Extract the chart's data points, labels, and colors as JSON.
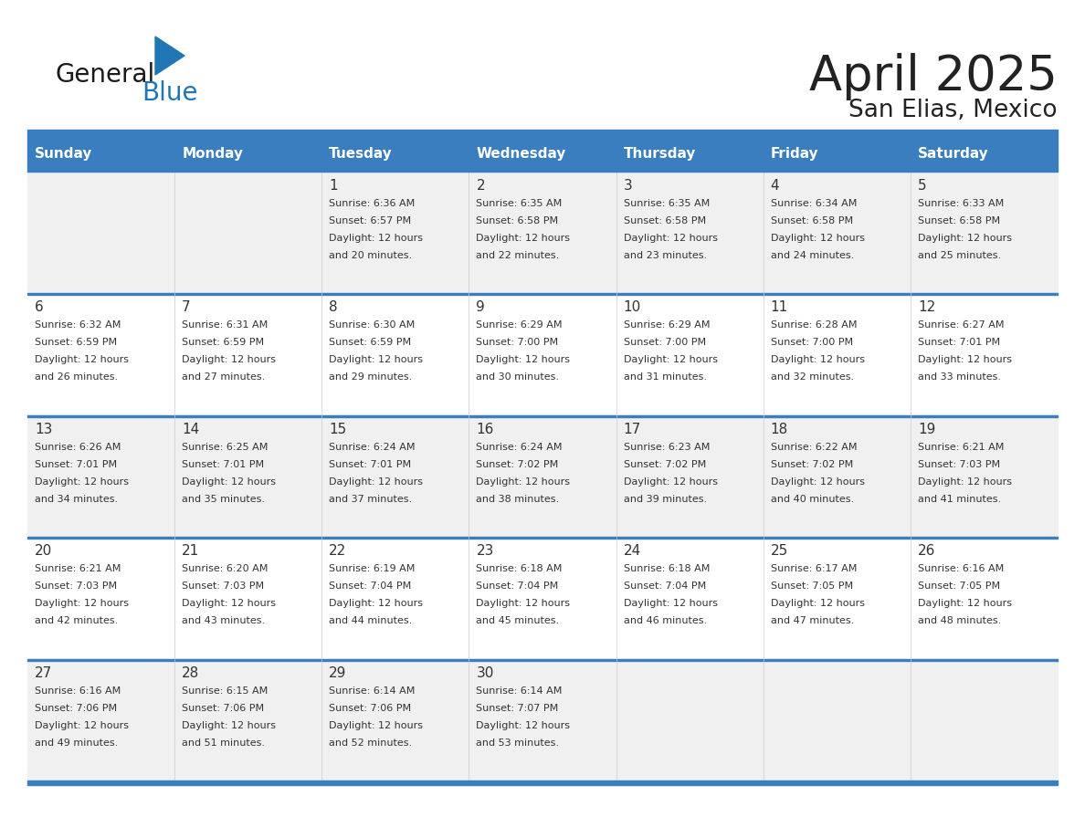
{
  "title": "April 2025",
  "subtitle": "San Elias, Mexico",
  "header_color": "#3a7ebf",
  "header_text_color": "#ffffff",
  "day_names": [
    "Sunday",
    "Monday",
    "Tuesday",
    "Wednesday",
    "Thursday",
    "Friday",
    "Saturday"
  ],
  "row_bg_odd": "#f0f0f0",
  "row_bg_even": "#ffffff",
  "cell_border_color": "#3a7ebf",
  "text_color": "#333333",
  "title_color": "#222222",
  "days": [
    {
      "day": 1,
      "col": 2,
      "row": 0,
      "sunrise": "6:36 AM",
      "sunset": "6:57 PM",
      "daylight_hours": 12,
      "daylight_minutes": 20
    },
    {
      "day": 2,
      "col": 3,
      "row": 0,
      "sunrise": "6:35 AM",
      "sunset": "6:58 PM",
      "daylight_hours": 12,
      "daylight_minutes": 22
    },
    {
      "day": 3,
      "col": 4,
      "row": 0,
      "sunrise": "6:35 AM",
      "sunset": "6:58 PM",
      "daylight_hours": 12,
      "daylight_minutes": 23
    },
    {
      "day": 4,
      "col": 5,
      "row": 0,
      "sunrise": "6:34 AM",
      "sunset": "6:58 PM",
      "daylight_hours": 12,
      "daylight_minutes": 24
    },
    {
      "day": 5,
      "col": 6,
      "row": 0,
      "sunrise": "6:33 AM",
      "sunset": "6:58 PM",
      "daylight_hours": 12,
      "daylight_minutes": 25
    },
    {
      "day": 6,
      "col": 0,
      "row": 1,
      "sunrise": "6:32 AM",
      "sunset": "6:59 PM",
      "daylight_hours": 12,
      "daylight_minutes": 26
    },
    {
      "day": 7,
      "col": 1,
      "row": 1,
      "sunrise": "6:31 AM",
      "sunset": "6:59 PM",
      "daylight_hours": 12,
      "daylight_minutes": 27
    },
    {
      "day": 8,
      "col": 2,
      "row": 1,
      "sunrise": "6:30 AM",
      "sunset": "6:59 PM",
      "daylight_hours": 12,
      "daylight_minutes": 29
    },
    {
      "day": 9,
      "col": 3,
      "row": 1,
      "sunrise": "6:29 AM",
      "sunset": "7:00 PM",
      "daylight_hours": 12,
      "daylight_minutes": 30
    },
    {
      "day": 10,
      "col": 4,
      "row": 1,
      "sunrise": "6:29 AM",
      "sunset": "7:00 PM",
      "daylight_hours": 12,
      "daylight_minutes": 31
    },
    {
      "day": 11,
      "col": 5,
      "row": 1,
      "sunrise": "6:28 AM",
      "sunset": "7:00 PM",
      "daylight_hours": 12,
      "daylight_minutes": 32
    },
    {
      "day": 12,
      "col": 6,
      "row": 1,
      "sunrise": "6:27 AM",
      "sunset": "7:01 PM",
      "daylight_hours": 12,
      "daylight_minutes": 33
    },
    {
      "day": 13,
      "col": 0,
      "row": 2,
      "sunrise": "6:26 AM",
      "sunset": "7:01 PM",
      "daylight_hours": 12,
      "daylight_minutes": 34
    },
    {
      "day": 14,
      "col": 1,
      "row": 2,
      "sunrise": "6:25 AM",
      "sunset": "7:01 PM",
      "daylight_hours": 12,
      "daylight_minutes": 35
    },
    {
      "day": 15,
      "col": 2,
      "row": 2,
      "sunrise": "6:24 AM",
      "sunset": "7:01 PM",
      "daylight_hours": 12,
      "daylight_minutes": 37
    },
    {
      "day": 16,
      "col": 3,
      "row": 2,
      "sunrise": "6:24 AM",
      "sunset": "7:02 PM",
      "daylight_hours": 12,
      "daylight_minutes": 38
    },
    {
      "day": 17,
      "col": 4,
      "row": 2,
      "sunrise": "6:23 AM",
      "sunset": "7:02 PM",
      "daylight_hours": 12,
      "daylight_minutes": 39
    },
    {
      "day": 18,
      "col": 5,
      "row": 2,
      "sunrise": "6:22 AM",
      "sunset": "7:02 PM",
      "daylight_hours": 12,
      "daylight_minutes": 40
    },
    {
      "day": 19,
      "col": 6,
      "row": 2,
      "sunrise": "6:21 AM",
      "sunset": "7:03 PM",
      "daylight_hours": 12,
      "daylight_minutes": 41
    },
    {
      "day": 20,
      "col": 0,
      "row": 3,
      "sunrise": "6:21 AM",
      "sunset": "7:03 PM",
      "daylight_hours": 12,
      "daylight_minutes": 42
    },
    {
      "day": 21,
      "col": 1,
      "row": 3,
      "sunrise": "6:20 AM",
      "sunset": "7:03 PM",
      "daylight_hours": 12,
      "daylight_minutes": 43
    },
    {
      "day": 22,
      "col": 2,
      "row": 3,
      "sunrise": "6:19 AM",
      "sunset": "7:04 PM",
      "daylight_hours": 12,
      "daylight_minutes": 44
    },
    {
      "day": 23,
      "col": 3,
      "row": 3,
      "sunrise": "6:18 AM",
      "sunset": "7:04 PM",
      "daylight_hours": 12,
      "daylight_minutes": 45
    },
    {
      "day": 24,
      "col": 4,
      "row": 3,
      "sunrise": "6:18 AM",
      "sunset": "7:04 PM",
      "daylight_hours": 12,
      "daylight_minutes": 46
    },
    {
      "day": 25,
      "col": 5,
      "row": 3,
      "sunrise": "6:17 AM",
      "sunset": "7:05 PM",
      "daylight_hours": 12,
      "daylight_minutes": 47
    },
    {
      "day": 26,
      "col": 6,
      "row": 3,
      "sunrise": "6:16 AM",
      "sunset": "7:05 PM",
      "daylight_hours": 12,
      "daylight_minutes": 48
    },
    {
      "day": 27,
      "col": 0,
      "row": 4,
      "sunrise": "6:16 AM",
      "sunset": "7:06 PM",
      "daylight_hours": 12,
      "daylight_minutes": 49
    },
    {
      "day": 28,
      "col": 1,
      "row": 4,
      "sunrise": "6:15 AM",
      "sunset": "7:06 PM",
      "daylight_hours": 12,
      "daylight_minutes": 51
    },
    {
      "day": 29,
      "col": 2,
      "row": 4,
      "sunrise": "6:14 AM",
      "sunset": "7:06 PM",
      "daylight_hours": 12,
      "daylight_minutes": 52
    },
    {
      "day": 30,
      "col": 3,
      "row": 4,
      "sunrise": "6:14 AM",
      "sunset": "7:07 PM",
      "daylight_hours": 12,
      "daylight_minutes": 53
    }
  ],
  "logo_color_general": "#1a1a1a",
  "logo_color_blue": "#2077b4",
  "logo_triangle_color": "#2077b4",
  "fig_width": 11.88,
  "fig_height": 9.18,
  "dpi": 100
}
